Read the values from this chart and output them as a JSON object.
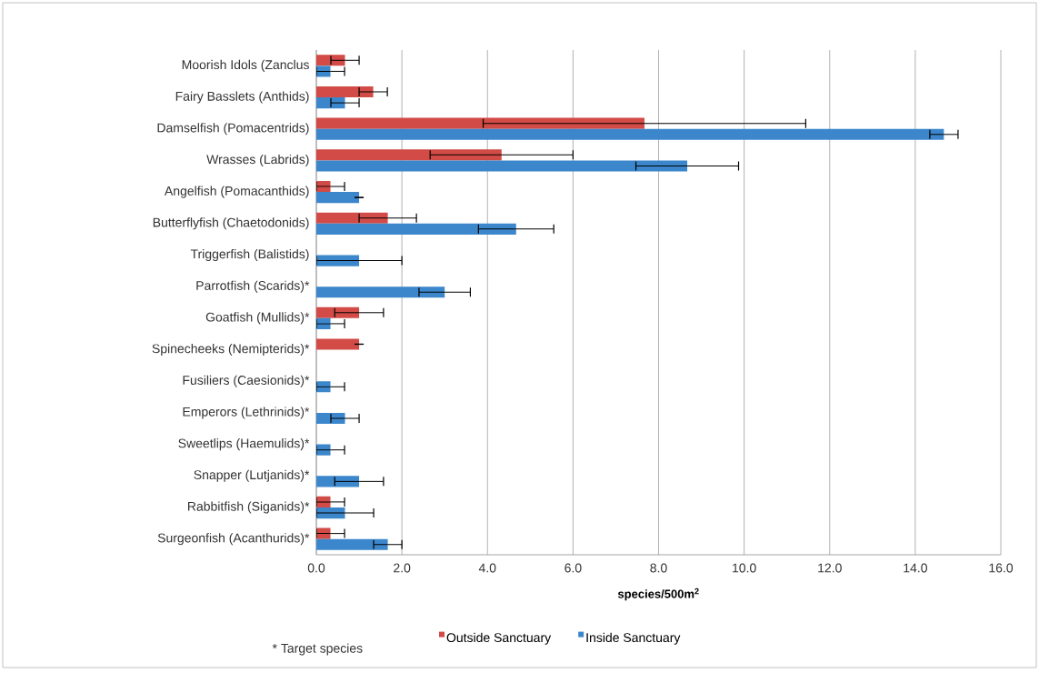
{
  "chart_data": {
    "type": "bar",
    "orientation": "horizontal",
    "categories": [
      "Moorish Idols (Zanclus",
      "Fairy Basslets (Anthids)",
      "Damselfish (Pomacentrids)",
      "Wrasses (Labrids)",
      "Angelfish (Pomacanthids)",
      "Butterflyfish (Chaetodonids)",
      "Triggerfish (Balistids)",
      "Parrotfish (Scarids)*",
      "Goatfish (Mullids)*",
      "Spinecheeks (Nemipterids)*",
      "Fusiliers (Caesionids)*",
      "Emperors (Lethrinids)*",
      "Sweetlips (Haemulids)*",
      "Snapper (Lutjanids)*",
      "Rabbitfish (Siganids)*",
      "Surgeonfish (Acanthurids)*"
    ],
    "series": [
      {
        "name": "Outside Sanctuary",
        "color": "#d24b46",
        "values": [
          0.67,
          1.33,
          7.67,
          4.33,
          0.33,
          1.67,
          0,
          0,
          1.0,
          1.0,
          0,
          0,
          0,
          0,
          0.33,
          0.33
        ],
        "errors": [
          0.33,
          0.33,
          3.77,
          1.67,
          0.33,
          0.67,
          null,
          null,
          0.57,
          0,
          null,
          null,
          null,
          null,
          0.33,
          0.33
        ]
      },
      {
        "name": "Inside Sanctuary",
        "color": "#3c87cc",
        "values": [
          0.33,
          0.67,
          14.67,
          8.67,
          1.0,
          4.67,
          1.0,
          3.0,
          0.33,
          0,
          0.33,
          0.67,
          0.33,
          1.0,
          0.67,
          1.67
        ],
        "errors": [
          0.33,
          0.33,
          0.33,
          1.2,
          0,
          0.88,
          1.0,
          0.6,
          0.33,
          null,
          0.33,
          0.33,
          0.33,
          0.57,
          0.67,
          0.33
        ]
      }
    ],
    "xlim": [
      0,
      16
    ],
    "xticks": [
      {
        "value": 0,
        "label": "0.0"
      },
      {
        "value": 2,
        "label": "2.0"
      },
      {
        "value": 4,
        "label": "4.0"
      },
      {
        "value": 6,
        "label": "6.0"
      },
      {
        "value": 8,
        "label": "8.0"
      },
      {
        "value": 10,
        "label": "10.0"
      },
      {
        "value": 12,
        "label": "12.0"
      },
      {
        "value": 14,
        "label": "14.0"
      },
      {
        "value": 16,
        "label": "16.0"
      }
    ],
    "xlabel": "species/500m$^{2}$",
    "grid": "x",
    "legend": "bottom",
    "annotations": [
      "* Target species"
    ]
  }
}
